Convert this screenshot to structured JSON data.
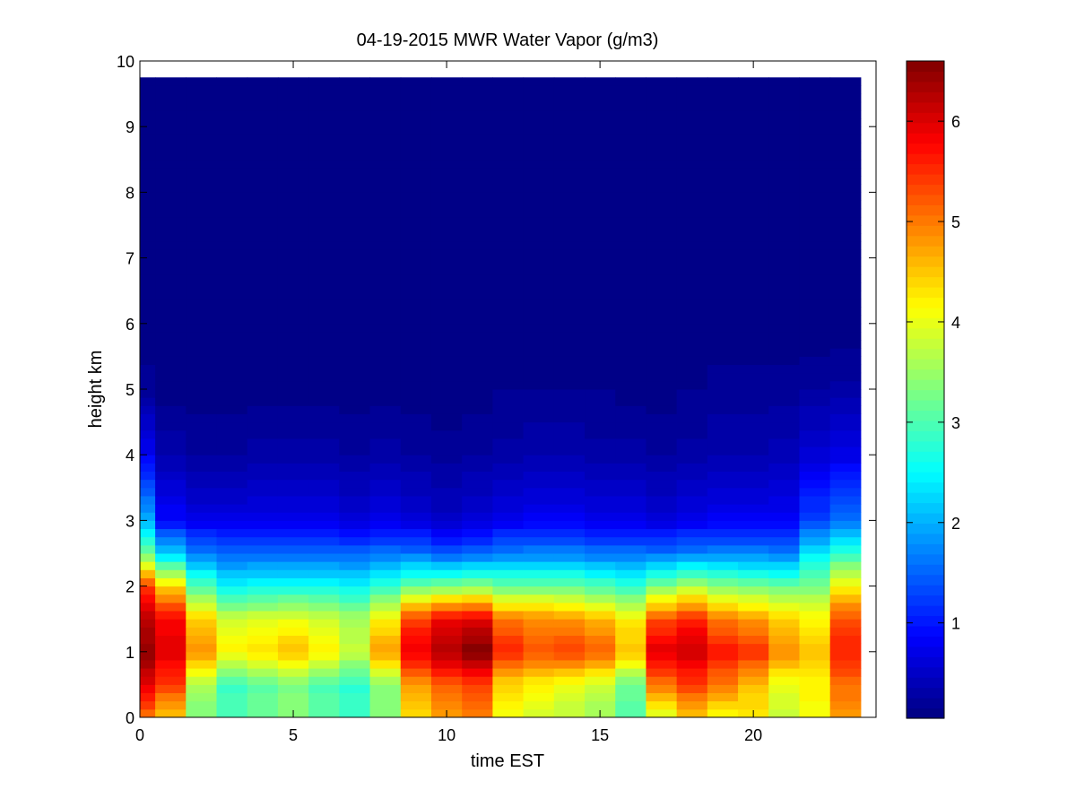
{
  "chart_data": {
    "type": "heatmap",
    "title": "04-19-2015 MWR Water Vapor (g/m3)",
    "xlabel": "time EST",
    "ylabel": "height km",
    "xlim": [
      0,
      24
    ],
    "ylim": [
      0,
      10
    ],
    "x_ticks": [
      0,
      5,
      10,
      15,
      20
    ],
    "y_ticks": [
      0,
      1,
      2,
      3,
      4,
      5,
      6,
      7,
      8,
      9,
      10
    ],
    "colorbar": {
      "min": 0.05,
      "max": 6.6,
      "ticks": [
        1,
        2,
        3,
        4,
        5,
        6
      ],
      "colormap": "jet"
    },
    "data_extent": {
      "time_max": 23.5,
      "height_max": 9.75
    },
    "time_step_hours": 1,
    "times": [
      0.5,
      1.5,
      2.5,
      3.5,
      4.5,
      5.5,
      6.5,
      7.5,
      8.5,
      9.5,
      10.5,
      11.5,
      12.5,
      13.5,
      14.5,
      15.5,
      16.5,
      17.5,
      18.5,
      19.5,
      20.5,
      21.5,
      22.5,
      23.5
    ],
    "profile_heights_km": [
      0,
      0.5,
      1,
      1.5,
      2,
      2.5,
      3,
      4,
      5,
      6,
      9.75
    ],
    "profiles_g_m3": [
      [
        5.0,
        6.0,
        6.5,
        6.2,
        5.4,
        3.2,
        2.0,
        0.8,
        0.2,
        0.05,
        0.05
      ],
      [
        4.5,
        5.4,
        6.0,
        5.8,
        4.4,
        2.2,
        0.9,
        0.35,
        0.1,
        0.05,
        0.05
      ],
      [
        3.3,
        3.6,
        4.9,
        4.5,
        3.0,
        1.7,
        0.7,
        0.25,
        0.1,
        0.05,
        0.05
      ],
      [
        3.0,
        2.9,
        4.2,
        3.8,
        2.5,
        1.5,
        0.7,
        0.25,
        0.1,
        0.05,
        0.05
      ],
      [
        3.2,
        3.1,
        4.4,
        3.9,
        2.6,
        1.5,
        0.7,
        0.3,
        0.1,
        0.05,
        0.05
      ],
      [
        3.4,
        3.3,
        4.6,
        4.0,
        2.6,
        1.5,
        0.7,
        0.3,
        0.1,
        0.05,
        0.05
      ],
      [
        3.1,
        3.0,
        4.2,
        3.8,
        2.6,
        1.5,
        0.7,
        0.3,
        0.1,
        0.05,
        0.05
      ],
      [
        2.9,
        2.8,
        3.8,
        3.6,
        2.5,
        1.5,
        0.6,
        0.25,
        0.1,
        0.05,
        0.05
      ],
      [
        3.4,
        3.4,
        4.8,
        4.2,
        2.8,
        1.6,
        0.7,
        0.3,
        0.1,
        0.05,
        0.05
      ],
      [
        4.4,
        4.8,
        5.9,
        5.4,
        3.2,
        1.6,
        0.6,
        0.25,
        0.1,
        0.05,
        0.05
      ],
      [
        4.8,
        5.2,
        6.3,
        5.9,
        3.3,
        1.4,
        0.5,
        0.2,
        0.08,
        0.05,
        0.05
      ],
      [
        5.0,
        5.4,
        6.6,
        6.0,
        3.4,
        1.5,
        0.6,
        0.25,
        0.1,
        0.05,
        0.05
      ],
      [
        4.0,
        4.4,
        5.6,
        5.0,
        3.2,
        1.7,
        0.7,
        0.3,
        0.15,
        0.05,
        0.05
      ],
      [
        3.8,
        4.2,
        5.3,
        4.9,
        3.2,
        1.7,
        0.8,
        0.35,
        0.15,
        0.05,
        0.05
      ],
      [
        3.7,
        4.0,
        5.4,
        4.8,
        3.2,
        1.7,
        0.8,
        0.35,
        0.15,
        0.05,
        0.05
      ],
      [
        3.5,
        3.8,
        5.2,
        4.6,
        3.0,
        1.6,
        0.7,
        0.3,
        0.15,
        0.05,
        0.05
      ],
      [
        3.0,
        3.2,
        4.6,
        4.2,
        2.8,
        1.6,
        0.7,
        0.3,
        0.1,
        0.05,
        0.05
      ],
      [
        3.9,
        5.0,
        6.0,
        5.3,
        3.3,
        1.6,
        0.6,
        0.25,
        0.1,
        0.05,
        0.05
      ],
      [
        4.5,
        5.4,
        6.1,
        5.6,
        3.6,
        1.7,
        0.7,
        0.3,
        0.15,
        0.05,
        0.05
      ],
      [
        4.1,
        5.0,
        5.7,
        5.0,
        3.4,
        1.7,
        0.8,
        0.35,
        0.2,
        0.05,
        0.05
      ],
      [
        4.2,
        4.6,
        5.5,
        4.8,
        3.3,
        1.7,
        0.8,
        0.35,
        0.2,
        0.05,
        0.05
      ],
      [
        3.8,
        4.0,
        4.9,
        4.4,
        3.2,
        1.6,
        0.8,
        0.4,
        0.2,
        0.05,
        0.05
      ],
      [
        4.1,
        4.2,
        4.5,
        4.2,
        3.3,
        2.4,
        1.3,
        0.6,
        0.25,
        0.05,
        0.05
      ],
      [
        4.8,
        5.1,
        5.6,
        5.3,
        4.2,
        2.8,
        1.6,
        0.7,
        0.3,
        0.05,
        0.05
      ]
    ]
  }
}
